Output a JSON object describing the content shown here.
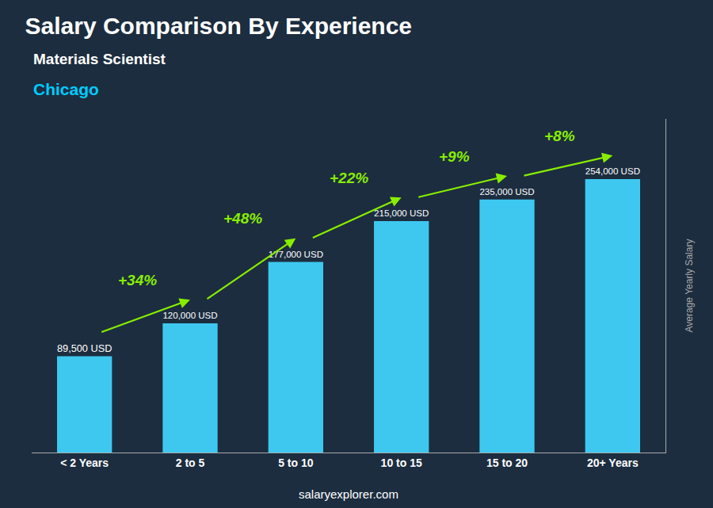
{
  "chart_data": {
    "type": "bar",
    "title": "Salary Comparison By Experience",
    "subtitle": "Materials Scientist",
    "ylabel": "Average Yearly Salary",
    "categories": [
      "< 2 Years",
      "2 to 5",
      "5 to 10",
      "10 to 15",
      "15 to 20",
      "20+ Years"
    ],
    "values": [
      89500,
      120000,
      177000,
      215000,
      235000,
      254000
    ],
    "value_labels": [
      "89,500 USD",
      "120,000 USD",
      "177,000 USD",
      "215,000 USD",
      "235,000 USD",
      "254,000 USD"
    ],
    "data_labels": true,
    "color": "#3ec8f0",
    "ylim": [
      0,
      310000
    ],
    "grid": false,
    "tick_labels": "x",
    "annotations": [
      {
        "text": "Chicago"
      },
      {
        "text": "salaryexplorer.com"
      },
      {
        "text": "+34%",
        "from": "< 2 Years",
        "to": "2 to 5"
      },
      {
        "text": "+48%",
        "from": "2 to 5",
        "to": "5 to 10"
      },
      {
        "text": "+22%",
        "from": "5 to 10",
        "to": "10 to 15"
      },
      {
        "text": "+9%",
        "from": "10 to 15",
        "to": "15 to 20"
      },
      {
        "text": "+8%",
        "from": "15 to 20",
        "to": "20+ Years"
      }
    ]
  }
}
